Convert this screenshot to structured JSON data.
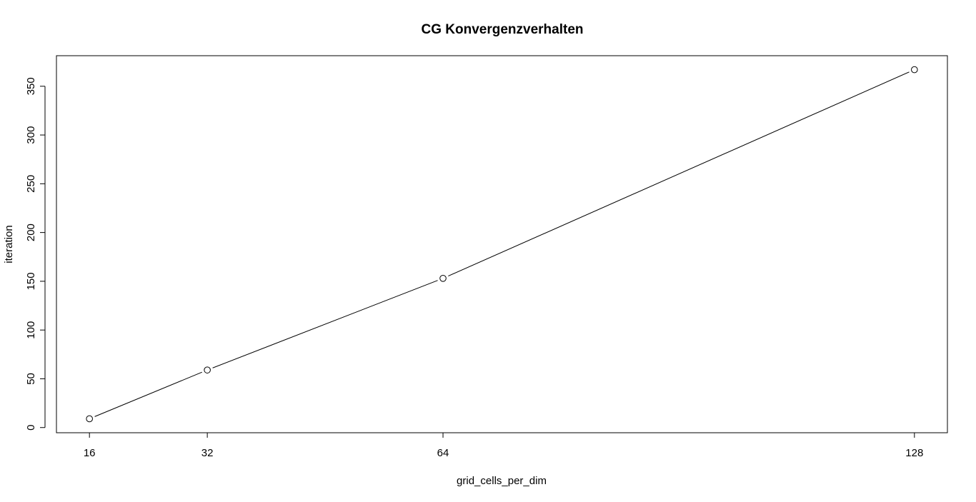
{
  "chart_data": {
    "type": "line",
    "title": "CG Konvergenzverhalten",
    "xlabel": "grid_cells_per_dim",
    "ylabel": "iteration",
    "x": [
      16,
      32,
      64,
      128
    ],
    "y": [
      9,
      59,
      153,
      367
    ],
    "xticks": [
      16,
      32,
      64,
      128
    ],
    "yticks": [
      0,
      50,
      100,
      150,
      200,
      250,
      300,
      350
    ],
    "xlim": [
      11.52,
      132.48
    ],
    "ylim": [
      -5.32,
      381.32
    ],
    "markers": "open-circle",
    "grid": false,
    "legend": "none"
  }
}
